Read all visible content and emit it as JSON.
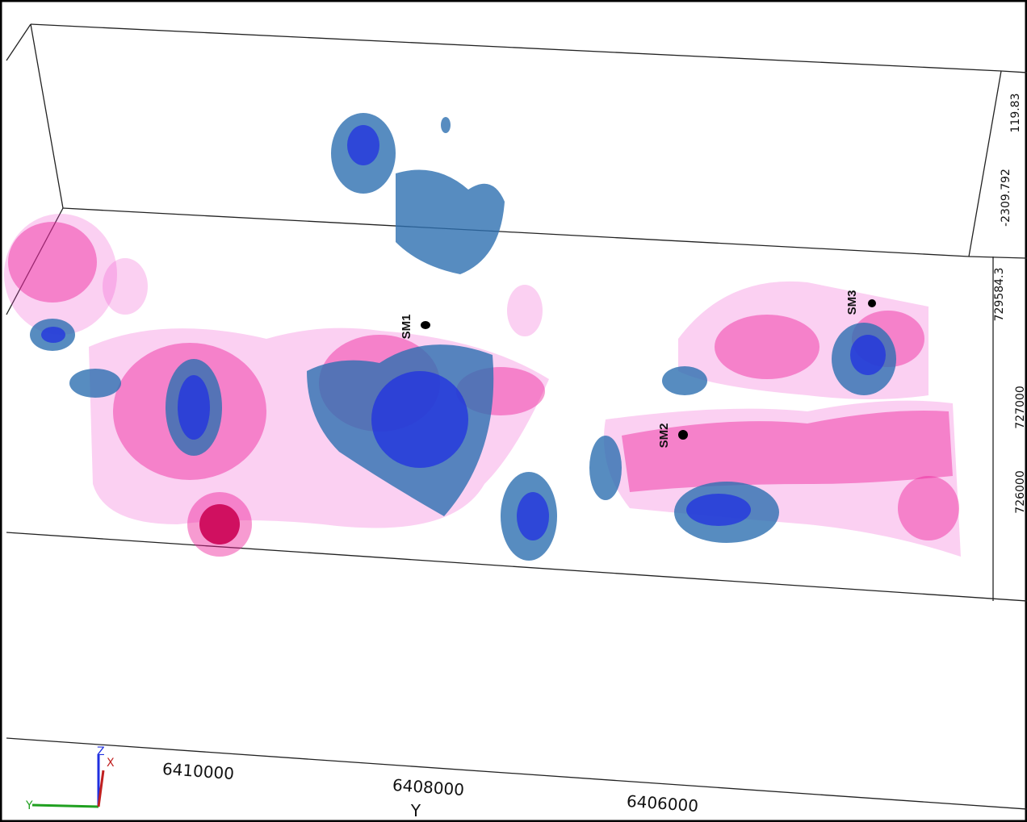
{
  "axis": {
    "y_ticks": [
      "6410000",
      "6408000",
      "6406000"
    ],
    "y_title": "Y",
    "right_ticks": [
      "119.83",
      "-2309.792",
      "729584.3",
      "727000",
      "726000"
    ]
  },
  "markers": [
    "SM1",
    "SM2",
    "SM3"
  ],
  "triad": [
    "Z",
    "X",
    "Y"
  ]
}
